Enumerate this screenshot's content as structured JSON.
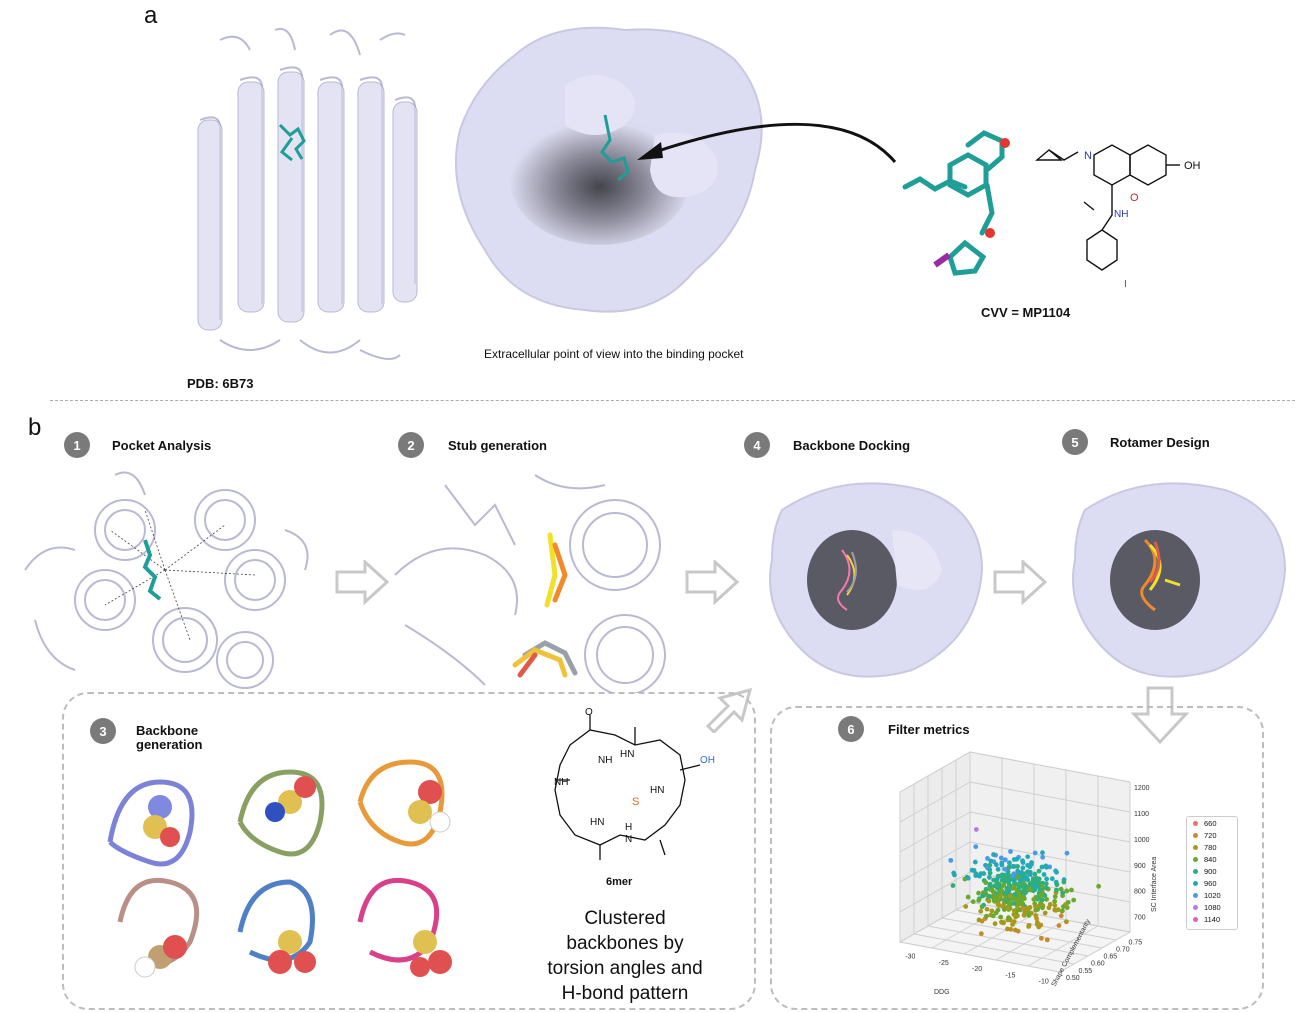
{
  "panel_a": {
    "letter": "a",
    "pdb_label": "PDB: 6B73",
    "pocket_caption": "Extracellular point of view into the binding pocket",
    "ligand_caption": "CVV = MP1104",
    "chem_labels": {
      "n": "N",
      "oh": "OH",
      "o": "O",
      "nh": "NH",
      "i": "I"
    }
  },
  "panel_b": {
    "letter": "b",
    "steps": [
      {
        "num": "1",
        "label": "Pocket Analysis"
      },
      {
        "num": "2",
        "label": "Stub generation"
      },
      {
        "num": "3",
        "label": "Backbone generation"
      },
      {
        "num": "4",
        "label": "Backbone Docking"
      },
      {
        "num": "5",
        "label": "Rotamer Design"
      },
      {
        "num": "6",
        "label": "Filter metrics"
      }
    ],
    "macrocycle": {
      "name": "6mer",
      "labels": {
        "nh": "NH",
        "hn": "HN",
        "o": "O",
        "oh": "OH",
        "s": "S",
        "h": "H",
        "n": "N"
      }
    },
    "clustered_text": [
      "Clustered",
      "backbones by",
      "torsion angles and",
      "H-bond pattern"
    ]
  },
  "chart_data": {
    "type": "scatter",
    "subtype": "3d-scatter",
    "title": "",
    "xlabel": "DDG",
    "ylabel": "Shape Complementarity",
    "zlabel": "SC Interface Area",
    "x_ticks": [
      "-30",
      "-25",
      "-20",
      "-15",
      "-10"
    ],
    "y_ticks": [
      "0.50",
      "0.55",
      "0.60",
      "0.65",
      "0.70",
      "0.75"
    ],
    "z_ticks": [
      "700",
      "800",
      "900",
      "1000",
      "1100",
      "1200"
    ],
    "xlim": [
      -32,
      -8
    ],
    "ylim": [
      0.5,
      0.78
    ],
    "zlim": [
      640,
      1220
    ],
    "legend_position": "right",
    "legend": [
      {
        "name": "660",
        "color": "#e8736b"
      },
      {
        "name": "720",
        "color": "#c98a2a"
      },
      {
        "name": "780",
        "color": "#a59a1c"
      },
      {
        "name": "840",
        "color": "#6aa92e"
      },
      {
        "name": "900",
        "color": "#2fae7c"
      },
      {
        "name": "960",
        "color": "#22a9b5"
      },
      {
        "name": "1020",
        "color": "#4b9ae8"
      },
      {
        "name": "1080",
        "color": "#b77ae3"
      },
      {
        "name": "1140",
        "color": "#e85cbf"
      }
    ]
  },
  "colors": {
    "protein": "#dcdcf2",
    "protein_dark": "#4a4a55",
    "ligand": "#1e9e96",
    "badge": "#7a7a7a",
    "arrow": "#c8c8c8",
    "chem_n": "#2b3bb0",
    "chem_o": "#c0282d",
    "chem_i": "#8a2aa0",
    "chem_blue": "#2f6fd6",
    "chem_s": "#e06a1c"
  }
}
